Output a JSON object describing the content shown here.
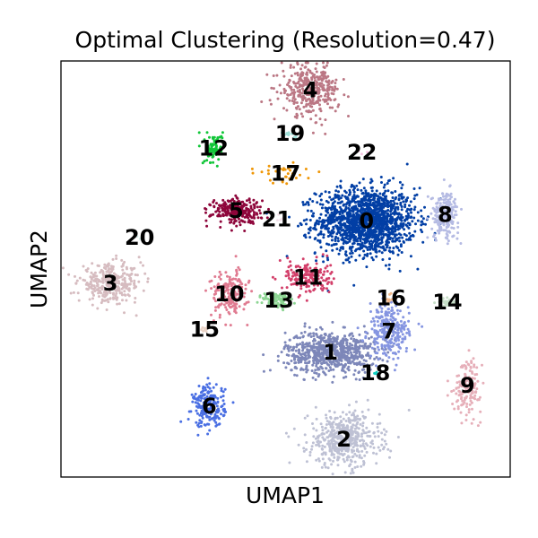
{
  "chart_data": {
    "type": "scatter",
    "title": "Optimal Clustering (Resolution=0.47)",
    "xlabel": "UMAP1",
    "ylabel": "UMAP2",
    "xlim": [
      -10,
      10
    ],
    "ylim": [
      -10,
      10
    ],
    "ticks_visible": false,
    "grid": false,
    "legend": "none",
    "cluster_label_style": "bold labels placed at cluster centers",
    "clusters": [
      {
        "label": "0",
        "color": "#023fa5",
        "center": [
          3.6,
          2.3
        ],
        "spread": [
          2.2,
          1.6
        ],
        "n": 1500
      },
      {
        "label": "1",
        "color": "#7d87b9",
        "center": [
          2.0,
          -4.0
        ],
        "spread": [
          2.0,
          1.0
        ],
        "n": 700
      },
      {
        "label": "2",
        "color": "#bec1d4",
        "center": [
          2.6,
          -8.2
        ],
        "spread": [
          1.6,
          1.3
        ],
        "n": 500
      },
      {
        "label": "3",
        "color": "#d6bcc0",
        "center": [
          -7.8,
          -0.7
        ],
        "spread": [
          1.4,
          0.9
        ],
        "n": 320
      },
      {
        "label": "4",
        "color": "#bb7784",
        "center": [
          1.1,
          8.6
        ],
        "spread": [
          1.3,
          1.2
        ],
        "n": 340
      },
      {
        "label": "5",
        "color": "#8e063b",
        "center": [
          -2.2,
          2.8
        ],
        "spread": [
          1.1,
          0.6
        ],
        "n": 260
      },
      {
        "label": "6",
        "color": "#4a6fe3",
        "center": [
          -3.4,
          -6.6
        ],
        "spread": [
          0.7,
          1.0
        ],
        "n": 220
      },
      {
        "label": "7",
        "color": "#8595e1",
        "center": [
          4.6,
          -3.0
        ],
        "spread": [
          0.9,
          1.3
        ],
        "n": 260
      },
      {
        "label": "8",
        "color": "#b5bbe3",
        "center": [
          7.1,
          2.6
        ],
        "spread": [
          0.6,
          1.1
        ],
        "n": 200
      },
      {
        "label": "9",
        "color": "#e6afb9",
        "center": [
          8.1,
          -5.6
        ],
        "spread": [
          0.6,
          1.3
        ],
        "n": 160
      },
      {
        "label": "10",
        "color": "#e07b91",
        "center": [
          -2.5,
          -1.2
        ],
        "spread": [
          0.8,
          1.1
        ],
        "n": 180
      },
      {
        "label": "11",
        "color": "#d33f6a",
        "center": [
          1.0,
          -0.4
        ],
        "spread": [
          1.0,
          0.8
        ],
        "n": 180
      },
      {
        "label": "12",
        "color": "#11c638",
        "center": [
          -3.2,
          5.8
        ],
        "spread": [
          0.4,
          0.7
        ],
        "n": 90
      },
      {
        "label": "13",
        "color": "#8dd593",
        "center": [
          -0.3,
          -1.5
        ],
        "spread": [
          0.7,
          0.4
        ],
        "n": 90
      },
      {
        "label": "14",
        "color": "#c6dec7",
        "center": [
          7.2,
          -1.6
        ],
        "spread": [
          0.4,
          0.2
        ],
        "n": 40
      },
      {
        "label": "15",
        "color": "#ead3c6",
        "center": [
          -3.6,
          -2.9
        ],
        "spread": [
          0.2,
          0.2
        ],
        "n": 12
      },
      {
        "label": "16",
        "color": "#f0b98d",
        "center": [
          4.7,
          -1.4
        ],
        "spread": [
          0.2,
          0.2
        ],
        "n": 12
      },
      {
        "label": "17",
        "color": "#ef9708",
        "center": [
          0.0,
          4.6
        ],
        "spread": [
          1.2,
          0.5
        ],
        "n": 40
      },
      {
        "label": "18",
        "color": "#0fcfc0",
        "center": [
          4.0,
          -5.0
        ],
        "spread": [
          0.1,
          0.1
        ],
        "n": 3
      },
      {
        "label": "19",
        "color": "#9cded6",
        "center": [
          0.2,
          6.5
        ],
        "spread": [
          0.3,
          0.2
        ],
        "n": 10
      },
      {
        "label": "20",
        "color": "#d5eae7",
        "center": [
          -6.5,
          1.5
        ],
        "spread": [
          0.1,
          0.1
        ],
        "n": 2
      },
      {
        "label": "21",
        "color": "#f3e1eb",
        "center": [
          -0.4,
          2.4
        ],
        "spread": [
          0.3,
          0.3
        ],
        "n": 5
      },
      {
        "label": "22",
        "color": "#f6c4e1",
        "center": [
          3.4,
          5.6
        ],
        "spread": [
          0.2,
          0.2
        ],
        "n": 3
      }
    ]
  }
}
